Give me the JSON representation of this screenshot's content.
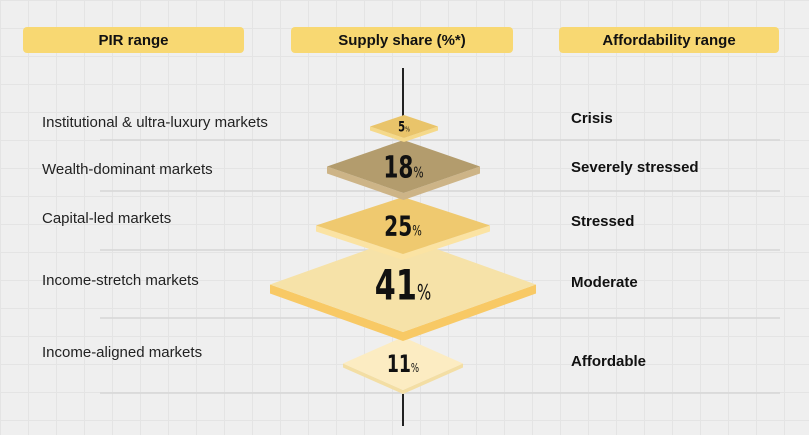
{
  "headers": {
    "pir": "PIR range",
    "supply": "Supply share (%*)",
    "affordability": "Affordability range"
  },
  "tiers": [
    {
      "market": "Institutional & ultra-luxury markets",
      "share": "5",
      "affordability": "Crisis",
      "top": "#e9c46a",
      "side": "#f5d98a"
    },
    {
      "market": "Wealth-dominant markets",
      "share": "18",
      "affordability": "Severely stressed",
      "top": "#b39c6d",
      "side": "#cdb487"
    },
    {
      "market": "Capital-led markets",
      "share": "25",
      "affordability": "Stressed",
      "top": "#efc96f",
      "side": "#fbe3a3"
    },
    {
      "market": "Income-stretch markets",
      "share": "41",
      "affordability": "Moderate",
      "top": "#f6e2a8",
      "side": "#f8c965"
    },
    {
      "market": "Income-aligned markets",
      "share": "11",
      "affordability": "Affordable",
      "top": "#fcecc2",
      "side": "#f3dea4"
    }
  ],
  "percent_sign": "%"
}
